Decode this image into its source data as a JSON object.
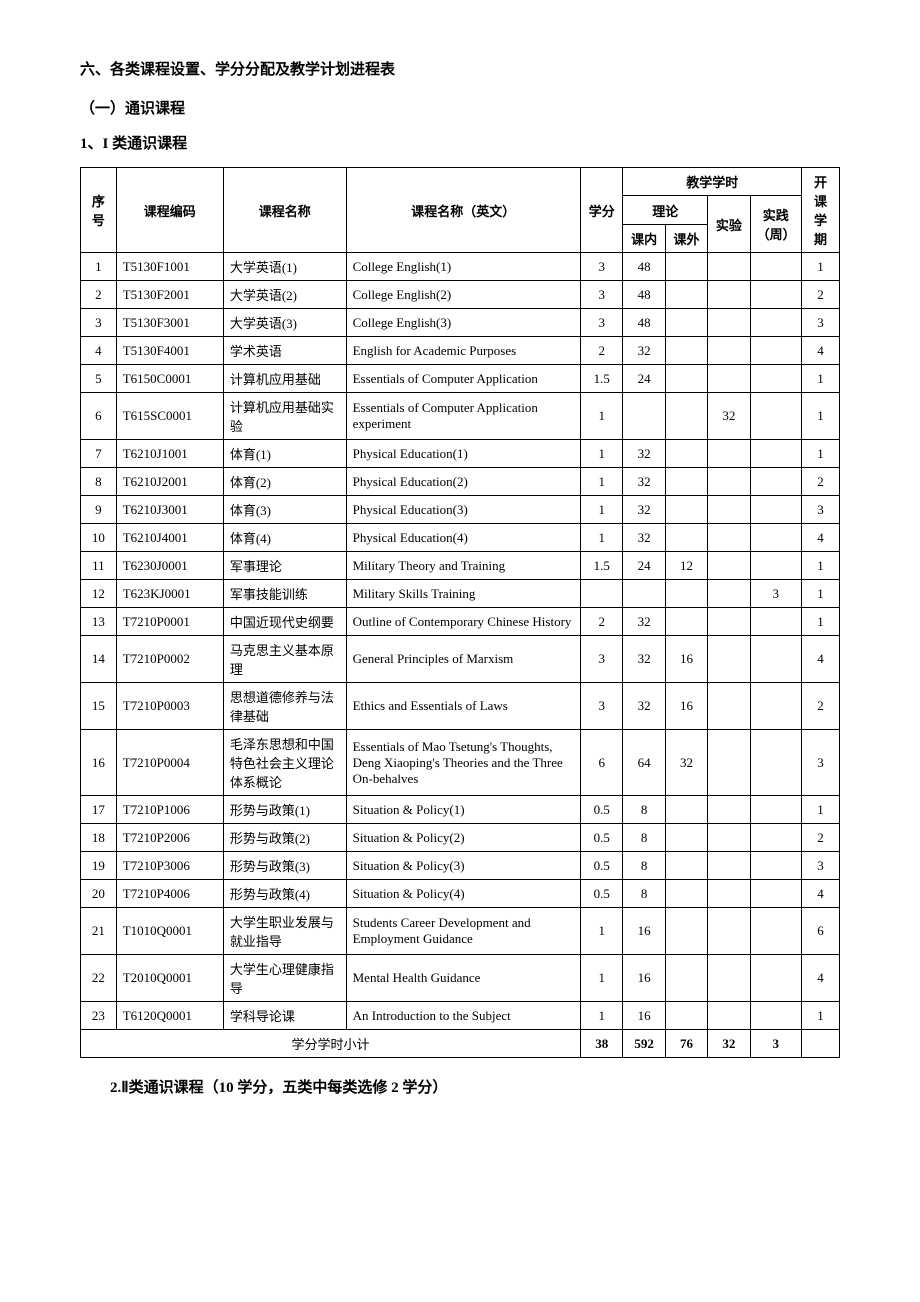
{
  "heading_main": "六、各类课程设置、学分分配及教学计划进程表",
  "heading_sub1": "（一）通识课程",
  "heading_sub2": "1、I 类通识课程",
  "footer_note": "2.Ⅱ类通识课程（10 学分，五类中每类选修 2 学分）",
  "table": {
    "headers": {
      "seq": "序号",
      "code": "课程编码",
      "name_cn": "课程名称",
      "name_en": "课程名称（英文）",
      "credits": "学分",
      "teaching_hours": "教学学时",
      "theory": "理论",
      "in_class": "课内",
      "out_class": "课外",
      "experiment": "实验",
      "practice_weeks": "实践（周）",
      "semester": "开课学期"
    },
    "rows": [
      {
        "n": "1",
        "code": "T5130F1001",
        "cn": "大学英语(1)",
        "en": "College English(1)",
        "cr": "3",
        "ic": "48",
        "oc": "",
        "ex": "",
        "pw": "",
        "sem": "1"
      },
      {
        "n": "2",
        "code": "T5130F2001",
        "cn": "大学英语(2)",
        "en": "College English(2)",
        "cr": "3",
        "ic": "48",
        "oc": "",
        "ex": "",
        "pw": "",
        "sem": "2"
      },
      {
        "n": "3",
        "code": "T5130F3001",
        "cn": "大学英语(3)",
        "en": "College English(3)",
        "cr": "3",
        "ic": "48",
        "oc": "",
        "ex": "",
        "pw": "",
        "sem": "3"
      },
      {
        "n": "4",
        "code": "T5130F4001",
        "cn": "学术英语",
        "en": "English for Academic Purposes",
        "cr": "2",
        "ic": "32",
        "oc": "",
        "ex": "",
        "pw": "",
        "sem": "4"
      },
      {
        "n": "5",
        "code": "T6150C0001",
        "cn": "计算机应用基础",
        "en": "Essentials of Computer Application",
        "cr": "1.5",
        "ic": "24",
        "oc": "",
        "ex": "",
        "pw": "",
        "sem": "1"
      },
      {
        "n": "6",
        "code": "T615SC0001",
        "cn": "计算机应用基础实验",
        "en": "Essentials of Computer Application experiment",
        "cr": "1",
        "ic": "",
        "oc": "",
        "ex": "32",
        "pw": "",
        "sem": "1"
      },
      {
        "n": "7",
        "code": "T6210J1001",
        "cn": "体育(1)",
        "en": "Physical Education(1)",
        "cr": "1",
        "ic": "32",
        "oc": "",
        "ex": "",
        "pw": "",
        "sem": "1"
      },
      {
        "n": "8",
        "code": "T6210J2001",
        "cn": "体育(2)",
        "en": "Physical Education(2)",
        "cr": "1",
        "ic": "32",
        "oc": "",
        "ex": "",
        "pw": "",
        "sem": "2"
      },
      {
        "n": "9",
        "code": "T6210J3001",
        "cn": "体育(3)",
        "en": "Physical Education(3)",
        "cr": "1",
        "ic": "32",
        "oc": "",
        "ex": "",
        "pw": "",
        "sem": "3"
      },
      {
        "n": "10",
        "code": "T6210J4001",
        "cn": "体育(4)",
        "en": "Physical Education(4)",
        "cr": "1",
        "ic": "32",
        "oc": "",
        "ex": "",
        "pw": "",
        "sem": "4"
      },
      {
        "n": "11",
        "code": "T6230J0001",
        "cn": "军事理论",
        "en": "Military Theory and Training",
        "cr": "1.5",
        "ic": "24",
        "oc": "12",
        "ex": "",
        "pw": "",
        "sem": "1"
      },
      {
        "n": "12",
        "code": "T623KJ0001",
        "cn": "军事技能训练",
        "en": "Military Skills Training",
        "cr": "",
        "ic": "",
        "oc": "",
        "ex": "",
        "pw": "3",
        "sem": "1"
      },
      {
        "n": "13",
        "code": "T7210P0001",
        "cn": "中国近现代史纲要",
        "en": "Outline of Contemporary Chinese History",
        "cr": "2",
        "ic": "32",
        "oc": "",
        "ex": "",
        "pw": "",
        "sem": "1"
      },
      {
        "n": "14",
        "code": "T7210P0002",
        "cn": "马克思主义基本原理",
        "en": "General Principles of Marxism",
        "cr": "3",
        "ic": "32",
        "oc": "16",
        "ex": "",
        "pw": "",
        "sem": "4"
      },
      {
        "n": "15",
        "code": "T7210P0003",
        "cn": "思想道德修养与法律基础",
        "en": "Ethics and Essentials of Laws",
        "cr": "3",
        "ic": "32",
        "oc": "16",
        "ex": "",
        "pw": "",
        "sem": "2"
      },
      {
        "n": "16",
        "code": "T7210P0004",
        "cn": "毛泽东思想和中国特色社会主义理论体系概论",
        "en": "Essentials of Mao Tsetung's Thoughts, Deng Xiaoping's Theories and the Three On-behalves",
        "cr": "6",
        "ic": "64",
        "oc": "32",
        "ex": "",
        "pw": "",
        "sem": "3"
      },
      {
        "n": "17",
        "code": "T7210P1006",
        "cn": "形势与政策(1)",
        "en": "Situation & Policy(1)",
        "cr": "0.5",
        "ic": "8",
        "oc": "",
        "ex": "",
        "pw": "",
        "sem": "1"
      },
      {
        "n": "18",
        "code": "T7210P2006",
        "cn": "形势与政策(2)",
        "en": "Situation & Policy(2)",
        "cr": "0.5",
        "ic": "8",
        "oc": "",
        "ex": "",
        "pw": "",
        "sem": "2"
      },
      {
        "n": "19",
        "code": "T7210P3006",
        "cn": "形势与政策(3)",
        "en": "Situation & Policy(3)",
        "cr": "0.5",
        "ic": "8",
        "oc": "",
        "ex": "",
        "pw": "",
        "sem": "3"
      },
      {
        "n": "20",
        "code": "T7210P4006",
        "cn": "形势与政策(4)",
        "en": "Situation & Policy(4)",
        "cr": "0.5",
        "ic": "8",
        "oc": "",
        "ex": "",
        "pw": "",
        "sem": "4"
      },
      {
        "n": "21",
        "code": "T1010Q0001",
        "cn": "大学生职业发展与就业指导",
        "en": "Students Career Development and Employment Guidance",
        "cr": "1",
        "ic": "16",
        "oc": "",
        "ex": "",
        "pw": "",
        "sem": "6"
      },
      {
        "n": "22",
        "code": "T2010Q0001",
        "cn": "大学生心理健康指导",
        "en": "Mental Health Guidance",
        "cr": "1",
        "ic": "16",
        "oc": "",
        "ex": "",
        "pw": "",
        "sem": "4"
      },
      {
        "n": "23",
        "code": "T6120Q0001",
        "cn": "学科导论课",
        "en": "An Introduction to the Subject",
        "cr": "1",
        "ic": "16",
        "oc": "",
        "ex": "",
        "pw": "",
        "sem": "1"
      }
    ],
    "subtotal": {
      "label": "学分学时小计",
      "cr": "38",
      "ic": "592",
      "oc": "76",
      "ex": "32",
      "pw": "3",
      "sem": ""
    }
  }
}
